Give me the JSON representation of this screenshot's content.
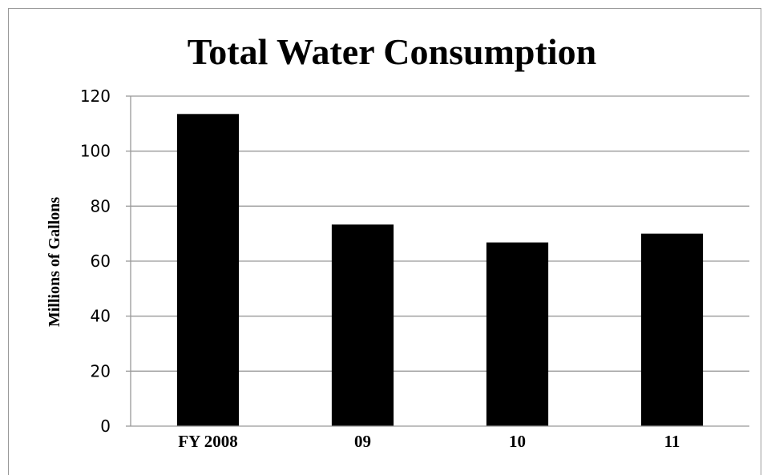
{
  "chart_data": {
    "type": "bar",
    "title": "Total Water Consumption",
    "xlabel": "",
    "ylabel": "Millions of Gallons",
    "categories": [
      "FY 2008",
      "09",
      "10",
      "11"
    ],
    "values": [
      113.5,
      73.3,
      66.8,
      70.0
    ],
    "ylim": [
      0,
      120
    ],
    "yticks": [
      0,
      20,
      40,
      60,
      80,
      100,
      120
    ],
    "grid": true,
    "bar_color": "#000000",
    "grid_color": "#999999"
  }
}
